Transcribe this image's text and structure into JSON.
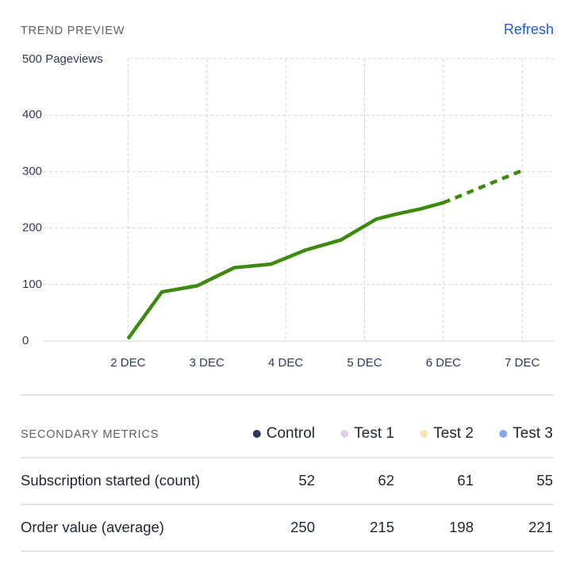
{
  "header": {
    "title": "TREND PREVIEW",
    "action": "Refresh"
  },
  "chart_data": {
    "type": "line",
    "xlim": [
      0.93,
      7.4
    ],
    "ylim": [
      0,
      500
    ],
    "xticks": [
      {
        "value": 2,
        "label": "2 DEC"
      },
      {
        "value": 3,
        "label": "3 DEC"
      },
      {
        "value": 4,
        "label": "4 DEC"
      },
      {
        "value": 5,
        "label": "5 DEC"
      },
      {
        "value": 6,
        "label": "6 DEC"
      },
      {
        "value": 7,
        "label": "7 DEC"
      }
    ],
    "yticks": [
      0,
      100,
      200,
      300,
      400,
      {
        "value": 500,
        "label": "500 Pageviews"
      }
    ],
    "grid": true,
    "series": [
      {
        "color": "#3d8a0e",
        "dashed": false,
        "x": [
          2.0,
          2.43,
          2.88,
          3.35,
          3.81,
          4.25,
          4.7,
          5.15,
          5.41,
          5.71,
          6.0
        ],
        "values": [
          4,
          87,
          98,
          130,
          136,
          161,
          179,
          216,
          225,
          234,
          245
        ]
      },
      {
        "color": "#3d8a0e",
        "dashed": true,
        "x": [
          6.0,
          7.0
        ],
        "values": [
          245,
          302
        ]
      }
    ]
  },
  "table": {
    "title": "SECONDARY METRICS",
    "columns": [
      {
        "name": "Control",
        "color": "#2b375c"
      },
      {
        "name": "Test 1",
        "color": "#e3cbee"
      },
      {
        "name": "Test 2",
        "color": "#f6e3b8"
      },
      {
        "name": "Test 3",
        "color": "#8ea7e6"
      }
    ],
    "rows": [
      {
        "label": "Subscription started (count)",
        "values": [
          52,
          62,
          61,
          55
        ]
      },
      {
        "label": "Order value (average)",
        "values": [
          250,
          215,
          198,
          221
        ]
      }
    ]
  }
}
